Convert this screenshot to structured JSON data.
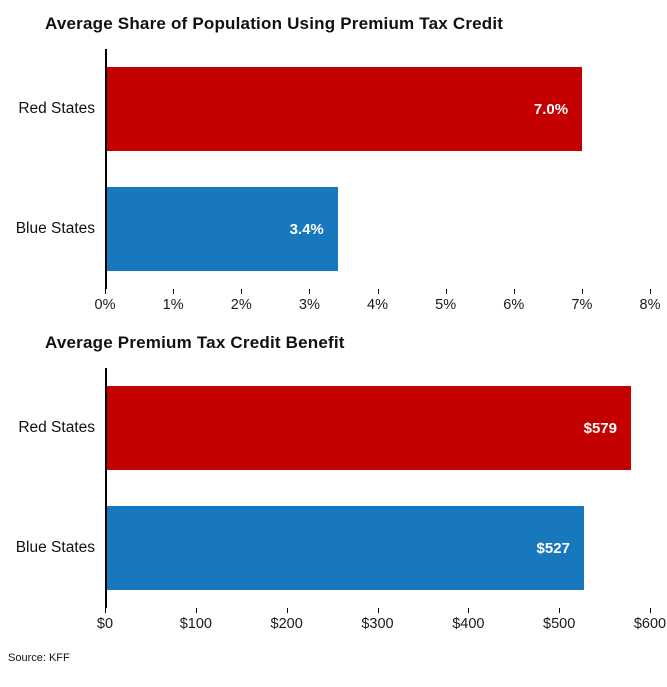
{
  "source_label": "Source: KFF",
  "colors": {
    "red_states": "#c40000",
    "blue_states": "#1878be",
    "axis": "#000000",
    "text": "#111111"
  },
  "chart_data": [
    {
      "type": "bar",
      "orientation": "horizontal",
      "title": "Average Share of Population Using Premium Tax Credit",
      "categories": [
        "Red States",
        "Blue States"
      ],
      "values": [
        7.0,
        3.4
      ],
      "value_labels": [
        "7.0%",
        "3.4%"
      ],
      "bar_colors": [
        "#c40000",
        "#1878be"
      ],
      "xlim": [
        0,
        8
      ],
      "x_ticks": [
        0,
        1,
        2,
        3,
        4,
        5,
        6,
        7,
        8
      ],
      "x_tick_labels": [
        "0%",
        "1%",
        "2%",
        "3%",
        "4%",
        "5%",
        "6%",
        "7%",
        "8%"
      ],
      "xlabel": "",
      "ylabel": "",
      "grid": false,
      "legend": "none"
    },
    {
      "type": "bar",
      "orientation": "horizontal",
      "title": "Average Premium Tax Credit Benefit",
      "categories": [
        "Red States",
        "Blue States"
      ],
      "values": [
        579,
        527
      ],
      "value_labels": [
        "$579",
        "$527"
      ],
      "bar_colors": [
        "#c40000",
        "#1878be"
      ],
      "xlim": [
        0,
        600
      ],
      "x_ticks": [
        0,
        100,
        200,
        300,
        400,
        500,
        600
      ],
      "x_tick_labels": [
        "$0",
        "$100",
        "$200",
        "$300",
        "$400",
        "$500",
        "$600"
      ],
      "xlabel": "",
      "ylabel": "",
      "grid": false,
      "legend": "none"
    }
  ]
}
